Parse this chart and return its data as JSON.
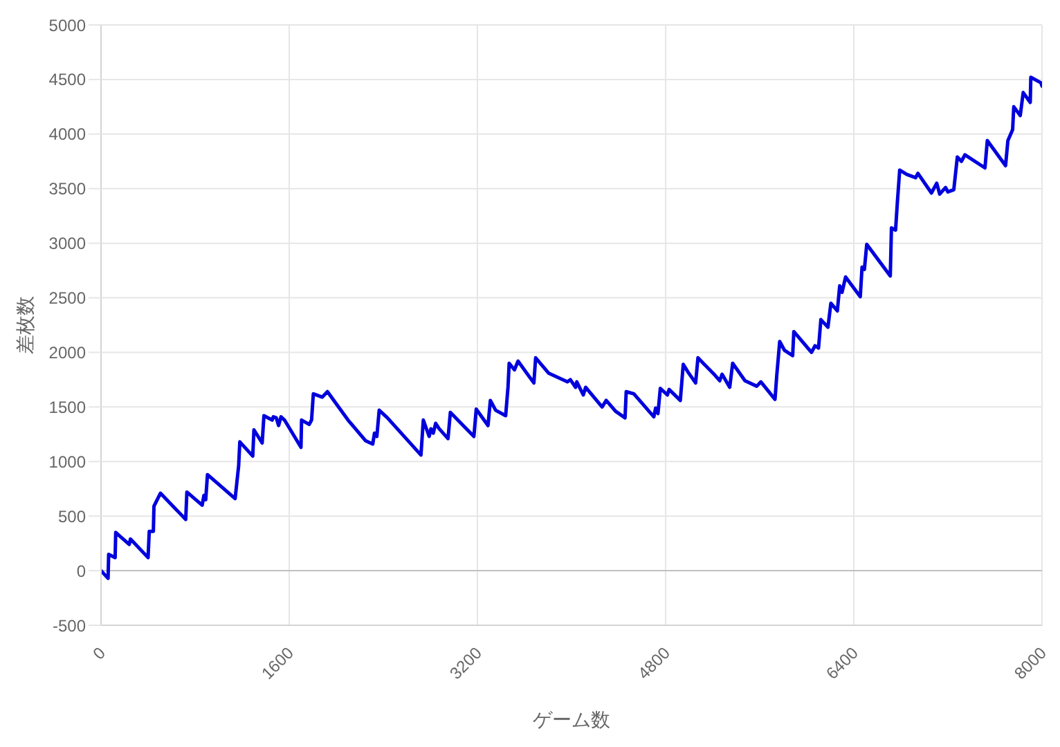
{
  "chart_data": {
    "type": "line",
    "xlabel": "ゲーム数",
    "ylabel": "差枚数",
    "x": [
      0,
      60,
      65,
      120,
      125,
      240,
      250,
      400,
      410,
      445,
      450,
      505,
      720,
      730,
      860,
      875,
      890,
      905,
      1140,
      1170,
      1180,
      1290,
      1300,
      1370,
      1385,
      1455,
      1465,
      1490,
      1510,
      1530,
      1560,
      1700,
      1705,
      1770,
      1790,
      1805,
      1880,
      1925,
      2100,
      2250,
      2310,
      2325,
      2345,
      2365,
      2435,
      2720,
      2740,
      2790,
      2805,
      2825,
      2845,
      2875,
      2950,
      2970,
      3170,
      3190,
      3290,
      3310,
      3355,
      3440,
      3460,
      3470,
      3515,
      3545,
      3680,
      3695,
      3805,
      3965,
      3990,
      4035,
      4045,
      4100,
      4120,
      4260,
      4295,
      4375,
      4455,
      4465,
      4530,
      4700,
      4715,
      4735,
      4755,
      4815,
      4830,
      4925,
      4950,
      4990,
      5055,
      5075,
      5220,
      5260,
      5280,
      5345,
      5370,
      5475,
      5575,
      5610,
      5730,
      5745,
      5770,
      5810,
      5880,
      5890,
      6040,
      6070,
      6100,
      6120,
      6180,
      6205,
      6260,
      6280,
      6300,
      6330,
      6455,
      6470,
      6490,
      6510,
      6710,
      6720,
      6755,
      6770,
      6790,
      6850,
      6925,
      6945,
      7060,
      7105,
      7130,
      7180,
      7200,
      7250,
      7280,
      7315,
      7345,
      7515,
      7535,
      7690,
      7710,
      7750,
      7760,
      7815,
      7840,
      7900,
      7905,
      7990,
      8000
    ],
    "values": [
      0,
      -70,
      150,
      120,
      350,
      240,
      290,
      120,
      360,
      360,
      590,
      710,
      470,
      720,
      600,
      690,
      650,
      880,
      660,
      960,
      1180,
      1050,
      1290,
      1170,
      1420,
      1380,
      1410,
      1400,
      1330,
      1410,
      1380,
      1130,
      1380,
      1340,
      1380,
      1620,
      1590,
      1640,
      1380,
      1190,
      1160,
      1260,
      1230,
      1470,
      1400,
      1060,
      1380,
      1230,
      1300,
      1260,
      1350,
      1300,
      1210,
      1450,
      1230,
      1480,
      1330,
      1560,
      1470,
      1420,
      1680,
      1900,
      1840,
      1920,
      1720,
      1950,
      1810,
      1730,
      1750,
      1680,
      1730,
      1610,
      1680,
      1500,
      1560,
      1460,
      1400,
      1640,
      1620,
      1410,
      1490,
      1440,
      1670,
      1610,
      1660,
      1560,
      1890,
      1820,
      1720,
      1950,
      1790,
      1740,
      1800,
      1680,
      1900,
      1740,
      1690,
      1730,
      1570,
      1790,
      2100,
      2020,
      1970,
      2190,
      2000,
      2060,
      2040,
      2300,
      2230,
      2450,
      2380,
      2610,
      2550,
      2690,
      2510,
      2780,
      2760,
      2990,
      2700,
      3140,
      3120,
      3370,
      3670,
      3630,
      3600,
      3640,
      3460,
      3550,
      3450,
      3510,
      3470,
      3490,
      3790,
      3750,
      3810,
      3690,
      3940,
      3710,
      3940,
      4040,
      4250,
      4170,
      4380,
      4290,
      4520,
      4470,
      4440
    ],
    "color": "#0000dd",
    "xlim": [
      0,
      8000
    ],
    "xticks": [
      0,
      1600,
      3200,
      4800,
      6400,
      8000
    ],
    "ylim": [
      -500,
      5000
    ],
    "yticks": [
      -500,
      0,
      500,
      1000,
      1500,
      2000,
      2500,
      3000,
      3500,
      4000,
      4500,
      5000
    ],
    "grid": true,
    "marker": "none",
    "line_style": "solid",
    "ref_lines": [
      {
        "axis": "y",
        "value": 0,
        "color": "#c0c0c0"
      }
    ]
  }
}
